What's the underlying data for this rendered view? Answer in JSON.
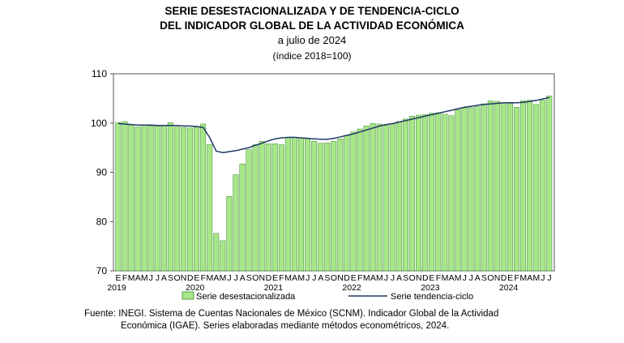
{
  "title_line1": "SERIE DESESTACIONALIZADA Y DE TENDENCIA-CICLO",
  "title_line2": "DEL INDICADOR GLOBAL DE LA ACTIVIDAD ECONÓMICA",
  "subtitle": "a julio de 2024",
  "unit_note": "(índice 2018=100)",
  "source_line1": "Fuente: INEGI. Sistema de Cuentas Nacionales de México (SCNM). Indicador Global de la Actividad",
  "source_line2": "Económica (IGAE). Series elaboradas mediante métodos econométricos, 2024.",
  "chart_data": {
    "type": "bar",
    "ylim": [
      70,
      110
    ],
    "yticks": [
      70,
      80,
      90,
      100,
      110
    ],
    "month_letters": [
      "E",
      "F",
      "M",
      "A",
      "M",
      "J",
      "J",
      "A",
      "S",
      "O",
      "N",
      "D"
    ],
    "years": [
      "2019",
      "2020",
      "2021",
      "2022",
      "2023",
      "2024"
    ],
    "legend": {
      "bars": "Serie desestacionalizada",
      "line": "Serie tendencia-ciclo",
      "placement": "bottom"
    },
    "colors": {
      "bar_fill": "#a8e68a",
      "bar_stroke": "#3a8a2a",
      "line": "#1f3864"
    },
    "series": [
      {
        "name": "Serie desestacionalizada",
        "kind": "bar",
        "values": [
          100.1,
          100.3,
          99.6,
          99.2,
          99.5,
          99.4,
          99.4,
          99.5,
          100.1,
          99.2,
          99.1,
          99.0,
          99.2,
          99.8,
          95.6,
          77.6,
          76.1,
          85.1,
          89.5,
          91.7,
          94.6,
          95.6,
          96.3,
          95.8,
          95.8,
          95.6,
          97.1,
          97.1,
          97.0,
          96.9,
          96.3,
          95.9,
          96.0,
          96.3,
          96.8,
          97.5,
          98.2,
          98.8,
          99.4,
          99.9,
          99.8,
          99.5,
          99.8,
          100.3,
          100.8,
          101.4,
          101.6,
          101.7,
          102.0,
          102.1,
          101.8,
          101.5,
          102.7,
          103.1,
          103.1,
          103.3,
          103.9,
          104.5,
          104.4,
          104.1,
          104.0,
          103.2,
          104.5,
          104.6,
          103.8,
          104.6,
          105.5
        ]
      },
      {
        "name": "Serie tendencia-ciclo",
        "kind": "line",
        "values": [
          99.9,
          99.8,
          99.7,
          99.6,
          99.6,
          99.6,
          99.5,
          99.5,
          99.5,
          99.5,
          99.4,
          99.4,
          99.3,
          99.1,
          97.0,
          94.3,
          94.0,
          94.2,
          94.4,
          94.7,
          95.0,
          95.5,
          95.9,
          96.4,
          96.8,
          97.0,
          97.1,
          97.1,
          97.0,
          96.9,
          96.8,
          96.7,
          96.7,
          96.9,
          97.2,
          97.5,
          97.8,
          98.2,
          98.6,
          99.0,
          99.4,
          99.7,
          99.9,
          100.2,
          100.5,
          100.8,
          101.1,
          101.4,
          101.7,
          102.0,
          102.3,
          102.6,
          102.9,
          103.2,
          103.4,
          103.6,
          103.8,
          103.9,
          104.0,
          104.1,
          104.1,
          104.1,
          104.2,
          104.4,
          104.6,
          104.9,
          105.2
        ]
      }
    ]
  }
}
